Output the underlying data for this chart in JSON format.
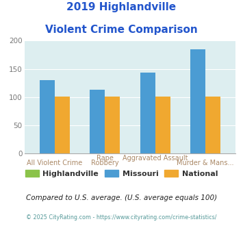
{
  "title_line1": "2019 Highlandville",
  "title_line2": "Violent Crime Comparison",
  "groups": [
    {
      "label": "All Violent Crime",
      "highlandville": null,
      "missouri": 130,
      "national": 101
    },
    {
      "label": "Rape\nRobbery",
      "highlandville": null,
      "missouri": 113,
      "national": 101
    },
    {
      "label": "Aggravated Assault\n",
      "highlandville": null,
      "missouri": 143,
      "national": 101
    },
    {
      "label": "Murder & Mans...",
      "highlandville": null,
      "missouri": 185,
      "national": 101
    }
  ],
  "top_row_labels": [
    "",
    "Rape",
    "Aggravated Assault",
    ""
  ],
  "bottom_row_labels": [
    "All Violent Crime",
    "Robbery",
    "",
    "Murder & Mans..."
  ],
  "highlandville_color": "#8bc34a",
  "missouri_color": "#4b9cd3",
  "national_color": "#f0a830",
  "background_color": "#ddeef0",
  "ylim": [
    0,
    200
  ],
  "yticks": [
    0,
    50,
    100,
    150,
    200
  ],
  "footnote": "Compared to U.S. average. (U.S. average equals 100)",
  "copyright": "© 2025 CityRating.com - https://www.cityrating.com/crime-statistics/",
  "title_color": "#2255cc",
  "label_color": "#aa8866",
  "legend_labels": [
    "Highlandville",
    "Missouri",
    "National"
  ],
  "footnote_color": "#222222",
  "copyright_color": "#559999"
}
